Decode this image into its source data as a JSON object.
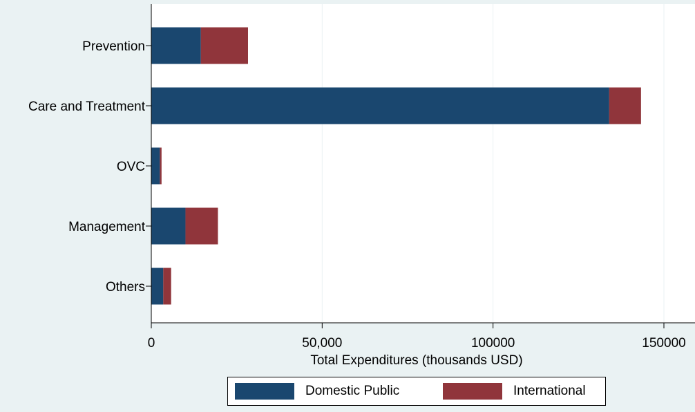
{
  "chart_data": {
    "type": "bar",
    "orientation": "horizontal",
    "stacked": true,
    "categories": [
      "Prevention",
      "Care and Treatment",
      "OVC",
      "Management",
      "Others"
    ],
    "series": [
      {
        "name": "Domestic Public",
        "color": "#1a476f",
        "values": [
          14500,
          134000,
          2500,
          10000,
          3500
        ]
      },
      {
        "name": "International",
        "color": "#90353b",
        "values": [
          13800,
          9300,
          500,
          9500,
          2300
        ]
      }
    ],
    "xlabel": "Total Expenditures (thousands USD)",
    "ylabel": "",
    "xlim": [
      0,
      150000
    ],
    "xticks": [
      {
        "value": 0,
        "label": "0"
      },
      {
        "value": 50000,
        "label": "50,000"
      },
      {
        "value": 100000,
        "label": "100000"
      },
      {
        "value": 150000,
        "label": "150000"
      }
    ],
    "grid": "vertical",
    "legend_position": "bottom"
  }
}
